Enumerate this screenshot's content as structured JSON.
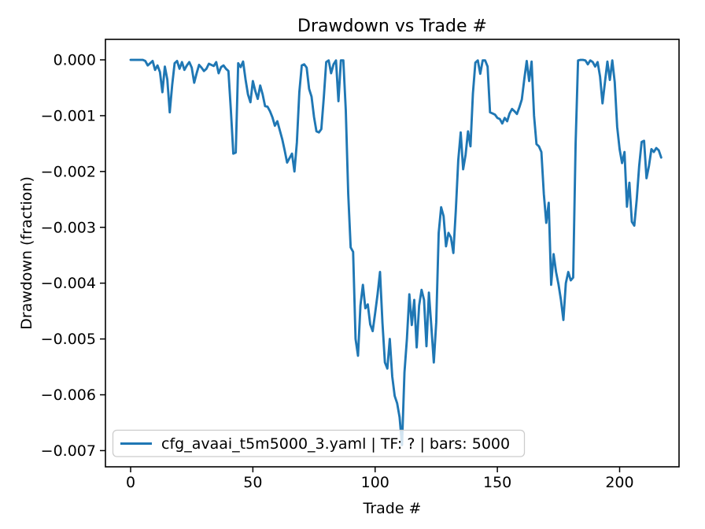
{
  "figure": {
    "background": "#ffffff",
    "accent_color": "#1f77b4"
  },
  "chart_data": {
    "type": "line",
    "title": "Drawdown vs Trade #",
    "xlabel": "Trade #",
    "ylabel": "Drawdown (fraction)",
    "grid": false,
    "legend": {
      "position": "lower left",
      "entries": [
        {
          "label": "cfg_avaai_t5m5000_3.yaml | TF: ? | bars: 5000",
          "color": "#1f77b4"
        }
      ]
    },
    "x_ticks": [
      0,
      50,
      100,
      150,
      200
    ],
    "x_tick_labels": [
      "0",
      "50",
      "100",
      "150",
      "200"
    ],
    "y_ticks": [
      0.0,
      -0.001,
      -0.002,
      -0.003,
      -0.004,
      -0.005,
      -0.006,
      -0.007
    ],
    "y_tick_labels": [
      "0.000",
      "−0.001",
      "−0.002",
      "−0.003",
      "−0.004",
      "−0.005",
      "−0.006",
      "−0.007"
    ],
    "xlim": [
      -10.3,
      224.3
    ],
    "ylim": [
      -0.00729,
      0.000367
    ],
    "series": [
      {
        "name": "cfg_avaai_t5m5000_3.yaml | TF: ? | bars: 5000",
        "color": "#1f77b4",
        "x_is_index": true,
        "values": [
          0,
          0,
          0,
          0,
          0,
          0,
          -2e-05,
          -0.0001,
          -6e-05,
          -2e-05,
          -0.00018,
          -0.0001,
          -0.00022,
          -0.00058,
          -0.00012,
          -0.00035,
          -0.00094,
          -0.00045,
          -6e-05,
          -2e-05,
          -0.00016,
          -4e-05,
          -0.00018,
          -0.0001,
          -4e-05,
          -0.00014,
          -0.00041,
          -0.00024,
          -9e-05,
          -0.00014,
          -0.0002,
          -0.00016,
          -7e-05,
          -9e-05,
          -0.00011,
          -4e-05,
          -0.00024,
          -0.00013,
          -0.0001,
          -0.00016,
          -0.0002,
          -0.0009,
          -0.00168,
          -0.00166,
          -6e-05,
          -0.00013,
          -3e-05,
          -0.00035,
          -0.00062,
          -0.00076,
          -0.00038,
          -0.00056,
          -0.0007,
          -0.00046,
          -0.00062,
          -0.00083,
          -0.00084,
          -0.00092,
          -0.00103,
          -0.00118,
          -0.0011,
          -0.00126,
          -0.00142,
          -0.00162,
          -0.00184,
          -0.00176,
          -0.00168,
          -0.002,
          -0.00148,
          -0.00058,
          -0.0001,
          -8e-05,
          -0.00014,
          -0.00052,
          -0.00066,
          -0.00102,
          -0.00128,
          -0.0013,
          -0.00124,
          -0.00068,
          -4e-05,
          -1e-05,
          -0.00024,
          -8e-05,
          -1e-05,
          -0.00074,
          -1e-05,
          -1e-05,
          -0.0009,
          -0.0024,
          -0.00336,
          -0.00344,
          -0.005,
          -0.0053,
          -0.0044,
          -0.00403,
          -0.00445,
          -0.00438,
          -0.00474,
          -0.00486,
          -0.00454,
          -0.0042,
          -0.0038,
          -0.00471,
          -0.00542,
          -0.00553,
          -0.005,
          -0.00567,
          -0.00602,
          -0.00615,
          -0.0064,
          -0.0069,
          -0.0056,
          -0.005,
          -0.0042,
          -0.00475,
          -0.0043,
          -0.00515,
          -0.0044,
          -0.00412,
          -0.0043,
          -0.00513,
          -0.00417,
          -0.00478,
          -0.00542,
          -0.0047,
          -0.0031,
          -0.00264,
          -0.0028,
          -0.00334,
          -0.0031,
          -0.00318,
          -0.00346,
          -0.0027,
          -0.0018,
          -0.0013,
          -0.00196,
          -0.0017,
          -0.00128,
          -0.00155,
          -0.0006,
          -5e-05,
          -1e-05,
          -0.00025,
          -1e-05,
          -1e-05,
          -0.00012,
          -0.00094,
          -0.00096,
          -0.00098,
          -0.00104,
          -0.00106,
          -0.00114,
          -0.00104,
          -0.0011,
          -0.00096,
          -0.00088,
          -0.00092,
          -0.00097,
          -0.00085,
          -0.00071,
          -0.00035,
          -2e-05,
          -0.00038,
          -3e-05,
          -0.001,
          -0.00151,
          -0.00155,
          -0.00165,
          -0.0024,
          -0.00292,
          -0.00256,
          -0.00403,
          -0.00348,
          -0.0038,
          -0.00402,
          -0.0043,
          -0.00466,
          -0.004,
          -0.0038,
          -0.00395,
          -0.0039,
          -0.0015,
          -1e-05,
          0,
          0,
          -1e-05,
          -8e-05,
          -1e-05,
          -4e-05,
          -0.00012,
          -4e-05,
          -0.0003,
          -0.00078,
          -0.0004,
          -3e-05,
          -0.00036,
          -1e-05,
          -0.0004,
          -0.0012,
          -0.0016,
          -0.00185,
          -0.00165,
          -0.00263,
          -0.0022,
          -0.0029,
          -0.00297,
          -0.0025,
          -0.0019,
          -0.00147,
          -0.00145,
          -0.00212,
          -0.0019,
          -0.0016,
          -0.00165,
          -0.00158,
          -0.00162,
          -0.00175
        ]
      }
    ]
  }
}
